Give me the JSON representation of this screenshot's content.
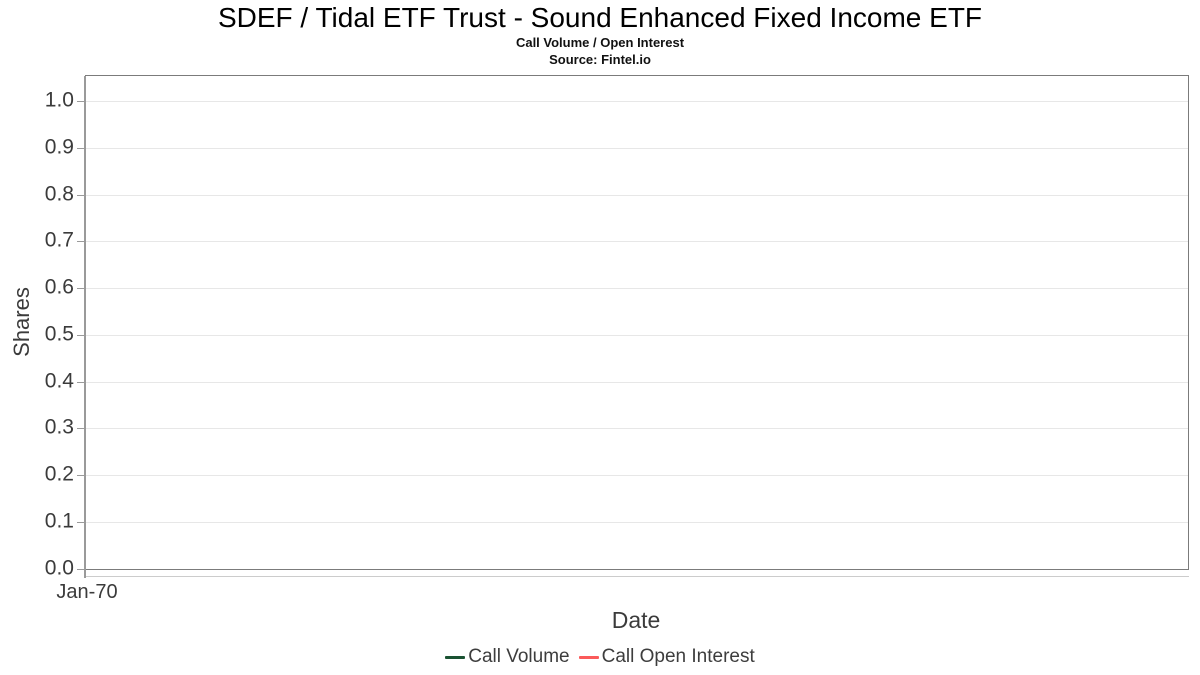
{
  "chart_data": {
    "type": "line",
    "title": "SDEF / Tidal ETF Trust - Sound Enhanced Fixed Income ETF",
    "subtitle": "Call Volume / Open Interest",
    "source": "Source: Fintel.io",
    "xlabel": "Date",
    "ylabel": "Shares",
    "ylim": [
      0.0,
      1.0
    ],
    "y_ticks": [
      "1.0",
      "0.9",
      "0.8",
      "0.7",
      "0.6",
      "0.5",
      "0.4",
      "0.3",
      "0.2",
      "0.1",
      "0.0"
    ],
    "x_ticks": [
      "Jan-70"
    ],
    "grid": "horizontal",
    "legend_position": "bottom",
    "colors": {
      "frame_border": "#7b7b7b",
      "gridline": "#e7e7e7",
      "axis_text": "#3b3b3b"
    },
    "series": [
      {
        "name": "Call Volume",
        "color": "#1a5232",
        "x": [],
        "values": []
      },
      {
        "name": "Call Open Interest",
        "color": "#fb5a5a",
        "x": [],
        "values": []
      }
    ]
  }
}
